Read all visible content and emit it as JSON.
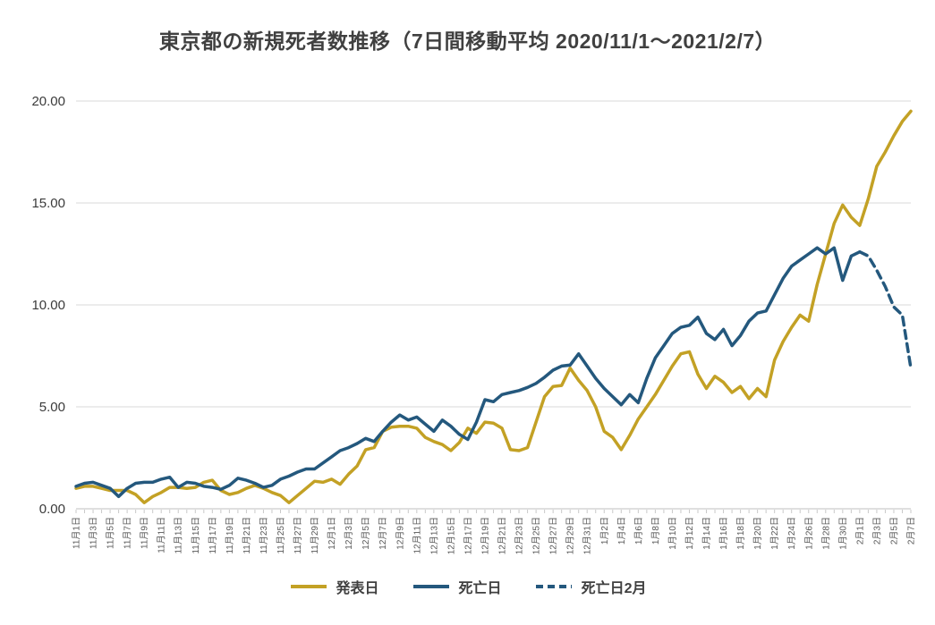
{
  "page": {
    "background": "#FFFFFF"
  },
  "chart_data": {
    "type": "line",
    "title": "東京都の新規死者数推移（7日間移動平均 2020/11/1～2021/2/7）",
    "ylim": [
      0,
      20
    ],
    "ytick_values": [
      0,
      5,
      10,
      15,
      20
    ],
    "ytick_labels": [
      "0.00",
      "5.00",
      "10.00",
      "15.00",
      "20.00"
    ],
    "n_points": 99,
    "x_label_every": 2,
    "x_labels": [
      "11月1日",
      "11月3日",
      "11月5日",
      "11月7日",
      "11月9日",
      "11月11日",
      "11月13日",
      "11月15日",
      "11月17日",
      "11月19日",
      "11月21日",
      "11月23日",
      "11月25日",
      "11月27日",
      "11月29日",
      "12月1日",
      "12月3日",
      "12月5日",
      "12月7日",
      "12月9日",
      "12月11日",
      "12月13日",
      "12月15日",
      "12月17日",
      "12月19日",
      "12月21日",
      "12月23日",
      "12月25日",
      "12月27日",
      "12月29日",
      "12月31日",
      "1月2日",
      "1月4日",
      "1月6日",
      "1月8日",
      "1月10日",
      "1月12日",
      "1月14日",
      "1月16日",
      "1月18日",
      "1月20日",
      "1月22日",
      "1月24日",
      "1月26日",
      "1月28日",
      "1月30日",
      "2月1日",
      "2月3日",
      "2月5日",
      "2月7日"
    ],
    "grid": true,
    "legend_position": "bottom",
    "colors": {
      "announced_gold": "#C3A125",
      "death_blue": "#24587D",
      "grid": "#D9D9D9",
      "axis": "#BFBFBF",
      "tick": "#C9C9C9",
      "axis_text": "#595959",
      "ytick_text": "#3B3B3B"
    },
    "series": [
      {
        "name": "発表日",
        "color": "#C3A125",
        "style": "solid",
        "start_index": 0,
        "values": [
          1.0,
          1.1,
          1.1,
          1.0,
          0.9,
          0.9,
          0.9,
          0.7,
          0.3,
          0.6,
          0.8,
          1.05,
          1.05,
          1.0,
          1.05,
          1.3,
          1.4,
          0.9,
          0.7,
          0.8,
          1.0,
          1.15,
          1.0,
          0.8,
          0.65,
          0.3,
          0.65,
          1.0,
          1.35,
          1.3,
          1.45,
          1.2,
          1.7,
          2.1,
          2.9,
          3.0,
          3.8,
          4.0,
          4.05,
          4.05,
          3.95,
          3.5,
          3.3,
          3.15,
          2.85,
          3.25,
          3.95,
          3.7,
          4.25,
          4.2,
          3.95,
          2.9,
          2.85,
          3.0,
          4.25,
          5.5,
          6.0,
          6.05,
          6.9,
          6.3,
          5.8,
          5.0,
          3.8,
          3.5,
          2.9,
          3.6,
          4.4,
          5.0,
          5.6,
          6.3,
          7.0,
          7.6,
          7.7,
          6.6,
          5.9,
          6.5,
          6.2,
          5.7,
          6.0,
          5.4,
          5.9,
          5.5,
          7.3,
          8.2,
          8.9,
          9.5,
          9.2,
          11.0,
          12.5,
          14.0,
          14.9,
          14.3,
          13.9,
          15.2,
          16.8,
          17.5,
          18.3,
          19.0,
          19.5
        ]
      },
      {
        "name": "死亡日",
        "color": "#24587D",
        "style": "solid",
        "start_index": 0,
        "values": [
          1.1,
          1.25,
          1.3,
          1.15,
          1.0,
          0.6,
          1.0,
          1.25,
          1.3,
          1.3,
          1.45,
          1.55,
          1.05,
          1.3,
          1.25,
          1.1,
          1.05,
          0.95,
          1.15,
          1.5,
          1.4,
          1.25,
          1.05,
          1.15,
          1.45,
          1.6,
          1.8,
          1.95,
          1.95,
          2.25,
          2.55,
          2.85,
          3.0,
          3.2,
          3.45,
          3.3,
          3.8,
          4.25,
          4.6,
          4.35,
          4.5,
          4.15,
          3.8,
          4.35,
          4.05,
          3.65,
          3.4,
          4.25,
          5.35,
          5.25,
          5.6,
          5.7,
          5.8,
          5.95,
          6.15,
          6.45,
          6.8,
          7.0,
          7.05,
          7.6,
          7.0,
          6.4,
          5.9,
          5.5,
          5.1,
          5.6,
          5.2,
          6.4,
          7.4,
          8.0,
          8.6,
          8.9,
          9.0,
          9.4,
          8.6,
          8.3,
          8.8,
          8.0,
          8.5,
          9.2,
          9.6,
          9.7,
          10.5,
          11.3,
          11.9,
          12.2,
          12.5,
          12.8,
          12.5,
          12.8,
          11.2,
          12.4,
          12.6
        ]
      },
      {
        "name": "死亡日2月",
        "color": "#24587D",
        "style": "dashed",
        "start_index": 92,
        "values": [
          12.6,
          12.4,
          11.7,
          10.9,
          9.9,
          9.5,
          6.9
        ]
      }
    ]
  }
}
